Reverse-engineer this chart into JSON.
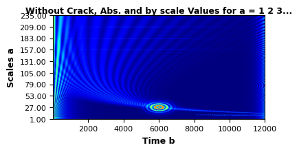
{
  "title": "Without Crack, Abs. and by scale Values for a = 1 2 3...",
  "xlabel": "Time b",
  "ylabel": "Scales a",
  "xlim": [
    1,
    12000
  ],
  "ylim": [
    1,
    235
  ],
  "xticks": [
    2000,
    4000,
    6000,
    8000,
    10000,
    12000
  ],
  "yticks": [
    1.0,
    27.0,
    53.0,
    79.0,
    105.0,
    131.0,
    157.0,
    183.0,
    209.0,
    235.0
  ],
  "time_points": 1200,
  "scale_points": 235,
  "title_fontsize": 9,
  "axis_label_fontsize": 9,
  "tick_fontsize": 8,
  "ridge_peak_time": 6000,
  "ridge_peak_scale": 27,
  "chirp_rate": 0.00015
}
